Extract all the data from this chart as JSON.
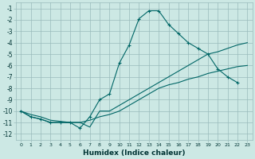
{
  "title": "",
  "xlabel": "Humidex (Indice chaleur)",
  "bg_color": "#cce8e4",
  "grid_color": "#99bbbb",
  "line_color": "#006666",
  "xlim": [
    -0.5,
    23.5
  ],
  "ylim": [
    -12.5,
    -0.5
  ],
  "xticks": [
    0,
    1,
    2,
    3,
    4,
    5,
    6,
    7,
    8,
    9,
    10,
    11,
    12,
    13,
    14,
    15,
    16,
    17,
    18,
    19,
    20,
    21,
    22,
    23
  ],
  "yticks": [
    -12,
    -11,
    -10,
    -9,
    -8,
    -7,
    -6,
    -5,
    -4,
    -3,
    -2,
    -1
  ],
  "series": [
    {
      "x": [
        0,
        1,
        2,
        3,
        4,
        5,
        6,
        7,
        8,
        9,
        10,
        11,
        12,
        13,
        14,
        15,
        16,
        17,
        18,
        19,
        20,
        21,
        22,
        23
      ],
      "y": [
        -10,
        -10.3,
        -10.5,
        -10.8,
        -10.9,
        -11,
        -11,
        -10.8,
        -10.5,
        -10.3,
        -10,
        -9.5,
        -9,
        -8.5,
        -8,
        -7.7,
        -7.5,
        -7.2,
        -7,
        -6.7,
        -6.5,
        -6.3,
        -6.1,
        -6
      ],
      "marker": false
    },
    {
      "x": [
        0,
        1,
        2,
        3,
        4,
        5,
        6,
        7,
        8,
        9,
        10,
        11,
        12,
        13,
        14,
        15,
        16,
        17,
        18,
        19,
        20,
        21,
        22,
        23
      ],
      "y": [
        -10,
        -10.5,
        -10.7,
        -11,
        -11,
        -11,
        -11,
        -11.4,
        -10,
        -10,
        -9.5,
        -9,
        -8.5,
        -8,
        -7.5,
        -7,
        -6.5,
        -6,
        -5.5,
        -5,
        -4.8,
        -4.5,
        -4.2,
        -4
      ],
      "marker": false
    },
    {
      "x": [
        0,
        1,
        2,
        3,
        4,
        5,
        6,
        7,
        8,
        9,
        10,
        11,
        12,
        13,
        14,
        15,
        16,
        17,
        18,
        19,
        20,
        21,
        22
      ],
      "y": [
        -10,
        -10.5,
        -10.7,
        -11,
        -11,
        -11,
        -11.5,
        -10.5,
        -9,
        -8.5,
        -5.8,
        -4.2,
        -1.9,
        -1.2,
        -1.2,
        -2.4,
        -3.2,
        -4,
        -4.5,
        -5,
        -6.3,
        -7,
        -7.5
      ],
      "marker": true
    }
  ]
}
